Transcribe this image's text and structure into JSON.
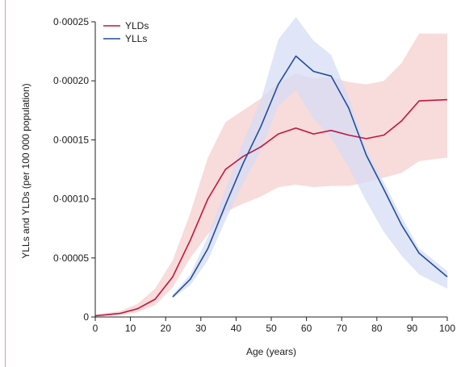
{
  "chart_data": {
    "type": "line",
    "title": "",
    "xlabel": "Age (years)",
    "ylabel": "YLLs and YLDs (per 100 000 population)",
    "xlim": [
      0,
      100
    ],
    "ylim": [
      0,
      0.00025
    ],
    "x_ticks": [
      0,
      10,
      20,
      30,
      40,
      50,
      60,
      70,
      80,
      90,
      100
    ],
    "x_tick_labels": [
      "0",
      "10",
      "20",
      "30",
      "40",
      "50",
      "60",
      "70",
      "80",
      "90",
      "100"
    ],
    "y_ticks": [
      0,
      5e-05,
      0.0001,
      0.00015,
      0.0002,
      0.00025
    ],
    "y_tick_labels": [
      "0",
      "0·00005",
      "0·00010",
      "0·00015",
      "0·00020",
      "0·00025"
    ],
    "grid": false,
    "legend_position": "top-left",
    "series": [
      {
        "name": "YLDs",
        "color": "#c0163f",
        "band_color": "#f7d5d5",
        "x": [
          0,
          7,
          12,
          17,
          22,
          27,
          32,
          37,
          42,
          47,
          52,
          57,
          62,
          67,
          72,
          77,
          82,
          87,
          92,
          100
        ],
        "values": [
          1e-06,
          3e-06,
          7e-06,
          1.5e-05,
          3.4e-05,
          6.5e-05,
          0.0001,
          0.000125,
          0.000136,
          0.000144,
          0.000155,
          0.00016,
          0.000155,
          0.000158,
          0.000154,
          0.000151,
          0.000154,
          0.000166,
          0.000183,
          0.000184
        ],
        "lower": [
          5e-07,
          1.5e-06,
          4e-06,
          1e-05,
          2.5e-05,
          5e-05,
          7e-05,
          8.9e-05,
          9.6e-05,
          0.000102,
          0.00011,
          0.000112,
          0.00011,
          0.000111,
          0.000111,
          0.000114,
          0.000118,
          0.000122,
          0.000132,
          0.000135
        ],
        "upper": [
          2e-06,
          5e-06,
          1.1e-05,
          2.4e-05,
          4.8e-05,
          8.8e-05,
          0.000135,
          0.000165,
          0.000175,
          0.000185,
          0.000198,
          0.000206,
          0.000202,
          0.000203,
          0.000199,
          0.000197,
          0.0002,
          0.000215,
          0.00024,
          0.00024
        ]
      },
      {
        "name": "YLLs",
        "color": "#1f4e9c",
        "band_color": "#d6dcf4",
        "x": [
          22,
          27,
          32,
          37,
          42,
          47,
          52,
          57,
          62,
          67,
          72,
          77,
          82,
          87,
          92,
          100
        ],
        "values": [
          1.7e-05,
          3.2e-05,
          5.8e-05,
          9.5e-05,
          0.00013,
          0.000161,
          0.000197,
          0.000221,
          0.000208,
          0.000204,
          0.000177,
          0.000137,
          0.000108,
          7.8e-05,
          5.4e-05,
          3.4e-05
        ],
        "lower": [
          1.6e-05,
          2.7e-05,
          4.8e-05,
          8.2e-05,
          0.000113,
          0.000141,
          0.000179,
          0.000192,
          0.000168,
          0.000152,
          0.000127,
          9.8e-05,
          7.2e-05,
          5.2e-05,
          3.6e-05,
          2.4e-05
        ],
        "upper": [
          1.9e-05,
          3.6e-05,
          6.8e-05,
          0.000108,
          0.000148,
          0.000183,
          0.000235,
          0.000254,
          0.000234,
          0.000222,
          0.000186,
          0.000142,
          0.000114,
          8.5e-05,
          5.8e-05,
          3.9e-05
        ]
      }
    ]
  }
}
